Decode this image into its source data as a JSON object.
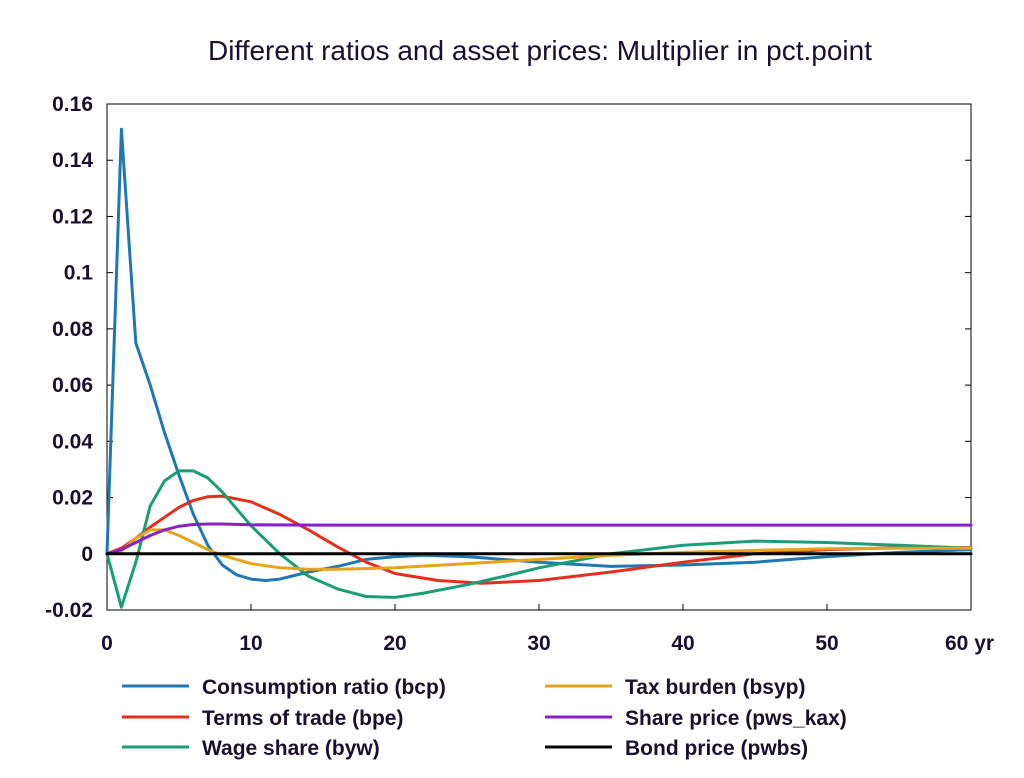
{
  "chart_data": {
    "type": "line",
    "title": "Different ratios and asset prices: Multiplier in pct.point",
    "xlabel": "",
    "ylabel": "",
    "xlim": [
      0,
      60
    ],
    "ylim": [
      -0.02,
      0.16
    ],
    "x_ticks": [
      {
        "value": 0,
        "label": "0"
      },
      {
        "value": 10,
        "label": "10"
      },
      {
        "value": 20,
        "label": "20"
      },
      {
        "value": 30,
        "label": "30"
      },
      {
        "value": 40,
        "label": "40"
      },
      {
        "value": 50,
        "label": "50"
      },
      {
        "value": 60,
        "label": "60 yr"
      }
    ],
    "y_ticks": [
      {
        "value": 0.16,
        "label": "0.16"
      },
      {
        "value": 0.14,
        "label": "0.14"
      },
      {
        "value": 0.12,
        "label": "0.12"
      },
      {
        "value": 0.1,
        "label": "0.1"
      },
      {
        "value": 0.08,
        "label": "0.08"
      },
      {
        "value": 0.06,
        "label": "0.06"
      },
      {
        "value": 0.04,
        "label": "0.04"
      },
      {
        "value": 0.02,
        "label": "0.02"
      },
      {
        "value": 0,
        "label": "0"
      },
      {
        "value": -0.02,
        "label": "-0.02"
      }
    ],
    "grid": false,
    "legend_position": "bottom",
    "series": [
      {
        "name": "Consumption ratio (bcp)",
        "color": "#1f77b4",
        "points": [
          [
            0,
            0
          ],
          [
            1,
            0.151
          ],
          [
            2,
            0.075
          ],
          [
            3,
            0.06
          ],
          [
            4,
            0.043
          ],
          [
            5,
            0.028
          ],
          [
            6,
            0.014
          ],
          [
            7,
            0.003
          ],
          [
            8,
            -0.004
          ],
          [
            9,
            -0.0075
          ],
          [
            10,
            -0.009
          ],
          [
            11,
            -0.0095
          ],
          [
            12,
            -0.009
          ],
          [
            14,
            -0.0065
          ],
          [
            16,
            -0.0045
          ],
          [
            18,
            -0.002
          ],
          [
            20,
            -0.001
          ],
          [
            22,
            -0.0005
          ],
          [
            25,
            -0.001
          ],
          [
            30,
            -0.003
          ],
          [
            35,
            -0.0045
          ],
          [
            40,
            -0.004
          ],
          [
            45,
            -0.003
          ],
          [
            50,
            -0.001
          ],
          [
            55,
            0.0005
          ],
          [
            60,
            0.0015
          ]
        ]
      },
      {
        "name": "Terms of trade (bpe)",
        "color": "#e3301e",
        "points": [
          [
            0,
            0
          ],
          [
            1,
            0.002
          ],
          [
            2,
            0.0055
          ],
          [
            3,
            0.0095
          ],
          [
            4,
            0.013
          ],
          [
            5,
            0.0165
          ],
          [
            6,
            0.019
          ],
          [
            7,
            0.0203
          ],
          [
            8,
            0.0205
          ],
          [
            10,
            0.0185
          ],
          [
            12,
            0.014
          ],
          [
            14,
            0.0085
          ],
          [
            16,
            0.0025
          ],
          [
            18,
            -0.003
          ],
          [
            20,
            -0.007
          ],
          [
            23,
            -0.0095
          ],
          [
            26,
            -0.0105
          ],
          [
            30,
            -0.0095
          ],
          [
            35,
            -0.0065
          ],
          [
            40,
            -0.003
          ],
          [
            45,
            0.0
          ],
          [
            50,
            0.0015
          ],
          [
            55,
            0.0022
          ],
          [
            60,
            0.0022
          ]
        ]
      },
      {
        "name": "Wage share (byw)",
        "color": "#199e76",
        "points": [
          [
            0,
            0
          ],
          [
            1,
            -0.019
          ],
          [
            2,
            -0.003
          ],
          [
            3,
            0.017
          ],
          [
            4,
            0.026
          ],
          [
            5,
            0.0295
          ],
          [
            6,
            0.0295
          ],
          [
            7,
            0.027
          ],
          [
            8,
            0.022
          ],
          [
            10,
            0.01
          ],
          [
            12,
            0.0
          ],
          [
            14,
            -0.008
          ],
          [
            16,
            -0.0125
          ],
          [
            18,
            -0.0152
          ],
          [
            20,
            -0.0155
          ],
          [
            22,
            -0.014
          ],
          [
            25,
            -0.011
          ],
          [
            28,
            -0.0075
          ],
          [
            30,
            -0.005
          ],
          [
            35,
            0.0
          ],
          [
            40,
            0.003
          ],
          [
            45,
            0.0045
          ],
          [
            50,
            0.004
          ],
          [
            55,
            0.003
          ],
          [
            60,
            0.002
          ]
        ]
      },
      {
        "name": "Tax burden (bsyp)",
        "color": "#e8a317",
        "points": [
          [
            0,
            0
          ],
          [
            1,
            0.001
          ],
          [
            2,
            0.0055
          ],
          [
            3,
            0.0085
          ],
          [
            4,
            0.0085
          ],
          [
            5,
            0.0065
          ],
          [
            6,
            0.004
          ],
          [
            7,
            0.0015
          ],
          [
            8,
            -0.0005
          ],
          [
            9,
            -0.002
          ],
          [
            10,
            -0.0035
          ],
          [
            12,
            -0.005
          ],
          [
            14,
            -0.0055
          ],
          [
            16,
            -0.0055
          ],
          [
            20,
            -0.005
          ],
          [
            25,
            -0.0035
          ],
          [
            30,
            -0.002
          ],
          [
            35,
            -0.0005
          ],
          [
            40,
            0.0005
          ],
          [
            45,
            0.0012
          ],
          [
            50,
            0.0018
          ],
          [
            55,
            0.002
          ],
          [
            60,
            0.002
          ]
        ]
      },
      {
        "name": "Share price (pws_kax)",
        "color": "#8b1fc9",
        "points": [
          [
            0,
            0
          ],
          [
            1,
            0.0015
          ],
          [
            2,
            0.004
          ],
          [
            3,
            0.0065
          ],
          [
            4,
            0.0085
          ],
          [
            5,
            0.0098
          ],
          [
            6,
            0.0104
          ],
          [
            7,
            0.0106
          ],
          [
            8,
            0.0106
          ],
          [
            10,
            0.0103
          ],
          [
            15,
            0.0102
          ],
          [
            20,
            0.0102
          ],
          [
            30,
            0.0102
          ],
          [
            40,
            0.0102
          ],
          [
            50,
            0.0102
          ],
          [
            60,
            0.0102
          ]
        ]
      },
      {
        "name": "Bond price (pwbs)",
        "color": "#000000",
        "points": [
          [
            0,
            0
          ],
          [
            60,
            0
          ]
        ]
      }
    ]
  }
}
